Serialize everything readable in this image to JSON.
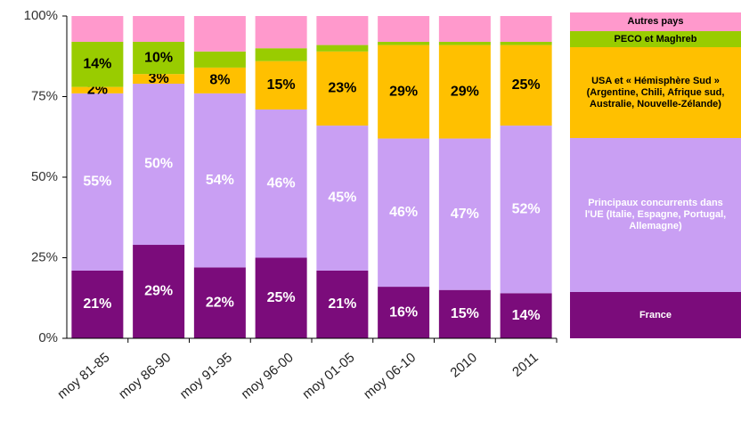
{
  "chart_data": {
    "type": "stacked-bar",
    "categories": [
      "moy 81-85",
      "moy 86-90",
      "moy 91-95",
      "moy 96-00",
      "moy 01-05",
      "moy 06-10",
      "2010",
      "2011"
    ],
    "series": [
      {
        "name": "France",
        "color": "#7b0c7b",
        "label_color": "#ffffff",
        "values": [
          21,
          29,
          22,
          25,
          21,
          16,
          15,
          14
        ],
        "value_labels": [
          "21%",
          "29%",
          "22%",
          "25%",
          "21%",
          "16%",
          "15%",
          "14%"
        ]
      },
      {
        "name": "Principaux concurrents dans l'UE (Italie, Espagne, Portugal, Allemagne)",
        "color": "#c99ff3",
        "label_color": "#ffffff",
        "values": [
          55,
          50,
          54,
          46,
          45,
          46,
          47,
          52
        ],
        "value_labels": [
          "55%",
          "50%",
          "54%",
          "46%",
          "45%",
          "46%",
          "47%",
          "52%"
        ]
      },
      {
        "name": "USA et « Hémisphère Sud » (Argentine, Chili, Afrique sud, Australie, Nouvelle-Zélande)",
        "color": "#ffc000",
        "label_color": "#000000",
        "values": [
          2,
          3,
          8,
          15,
          23,
          29,
          29,
          25
        ],
        "value_labels": [
          "2%",
          "3%",
          "8%",
          "15%",
          "23%",
          "29%",
          "29%",
          "25%"
        ]
      },
      {
        "name": "PECO et Maghreb",
        "color": "#99cc00",
        "label_color": "#000000",
        "values": [
          14,
          10,
          5,
          4,
          2,
          1,
          1,
          1
        ],
        "value_labels": [
          "14%",
          "10%",
          null,
          null,
          null,
          null,
          null,
          null
        ]
      },
      {
        "name": "Autres pays",
        "color": "#ff99cc",
        "label_color": "#000000",
        "values": [
          8,
          8,
          11,
          10,
          9,
          8,
          8,
          8
        ],
        "value_labels": [
          null,
          null,
          null,
          null,
          null,
          null,
          null,
          null
        ]
      }
    ],
    "ylim": [
      0,
      100
    ],
    "yticks": [
      {
        "value": 0,
        "label": "0%"
      },
      {
        "value": 25,
        "label": "25%"
      },
      {
        "value": 50,
        "label": "50%"
      },
      {
        "value": 75,
        "label": "75%"
      },
      {
        "value": 100,
        "label": "100%"
      }
    ]
  }
}
